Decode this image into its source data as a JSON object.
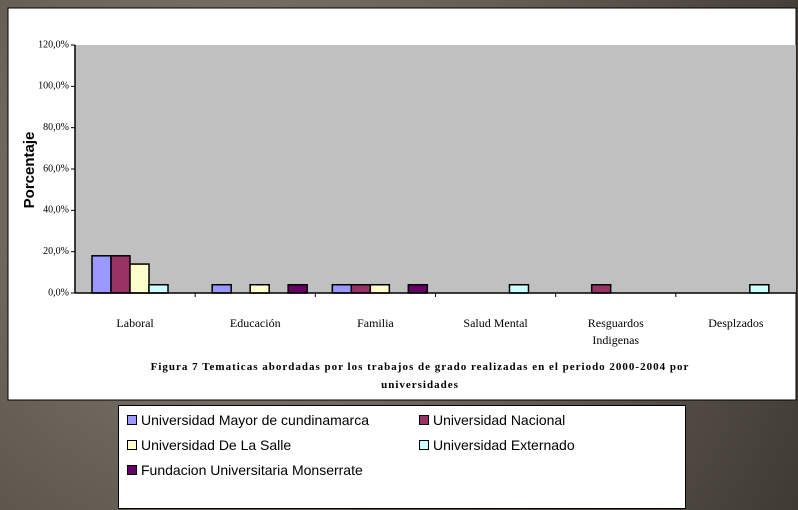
{
  "chart_data": {
    "type": "bar",
    "title": "Figura 7 Tematicas abordadas por los trabajos de grado realizadas en el periodo 2000-2004 por universidades",
    "y_label": "Porcentaje",
    "categories": [
      "Laboral",
      "Educación",
      "Familia",
      "Salud Mental",
      "Resguardos Indigenas",
      "Desplzados"
    ],
    "series": [
      {
        "name": "Universidad Mayor de cundinamarca",
        "color": "#9999ff",
        "values": [
          18,
          4,
          4,
          0,
          0,
          0
        ]
      },
      {
        "name": "Universidad Nacional",
        "color": "#993366",
        "values": [
          18,
          0,
          4,
          0,
          4,
          0
        ]
      },
      {
        "name": "Universidad De La Salle",
        "color": "#ffffcc",
        "values": [
          14,
          4,
          4,
          0,
          0,
          0
        ]
      },
      {
        "name": "Universidad Externado",
        "color": "#ccffff",
        "values": [
          4,
          0,
          0,
          4,
          0,
          4
        ]
      },
      {
        "name": "Fundacion Universitaria Monserrate",
        "color": "#660066",
        "values": [
          0,
          4,
          4,
          0,
          0,
          0
        ]
      }
    ],
    "ylim": [
      0,
      120
    ],
    "yticks": [
      {
        "value": 0,
        "label": "0,0%"
      },
      {
        "value": 20,
        "label": "20,0%"
      },
      {
        "value": 40,
        "label": "40,0%"
      },
      {
        "value": 60,
        "label": "60,0%"
      },
      {
        "value": 80,
        "label": "80,0%"
      },
      {
        "value": 100,
        "label": "100,0%"
      },
      {
        "value": 120,
        "label": "120,0%"
      }
    ]
  }
}
